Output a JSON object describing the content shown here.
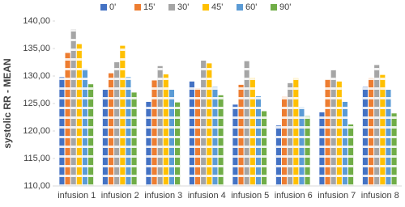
{
  "chart_data": {
    "type": "bar",
    "y_label": "systolic RR - MEAN",
    "categories": [
      "infusion 1",
      "infusion 2",
      "infusion 3",
      "infusion 4",
      "infusion 5",
      "infusion 6",
      "infusion 7",
      "infusion 8"
    ],
    "series": [
      {
        "name": "0'",
        "color": "#4472c4",
        "values": [
          129.8,
          127.5,
          125.3,
          129.0,
          124.8,
          121.0,
          123.4,
          128.0
        ]
      },
      {
        "name": "15'",
        "color": "#ed7d31",
        "values": [
          134.2,
          130.5,
          129.2,
          127.7,
          128.4,
          126.2,
          129.4,
          129.6
        ]
      },
      {
        "name": "30'",
        "color": "#a5a5a5",
        "values": [
          138.5,
          132.5,
          131.8,
          132.8,
          132.7,
          128.7,
          131.1,
          132.0
        ]
      },
      {
        "name": "45'",
        "color": "#ffc000",
        "values": [
          135.8,
          135.5,
          130.3,
          132.3,
          129.7,
          129.6,
          129.0,
          130.2
        ]
      },
      {
        "name": "60'",
        "color": "#5b9bd5",
        "values": [
          131.3,
          129.8,
          127.5,
          128.0,
          126.3,
          124.3,
          125.3,
          127.5
        ]
      },
      {
        "name": "90'",
        "color": "#70ad47",
        "values": [
          128.5,
          127.0,
          125.2,
          126.5,
          123.6,
          122.7,
          121.2,
          123.2
        ]
      }
    ],
    "ylim": [
      110,
      140
    ],
    "yticks": [
      {
        "value": 110,
        "label": "110,00"
      },
      {
        "value": 115,
        "label": "115,00"
      },
      {
        "value": 120,
        "label": "120,00"
      },
      {
        "value": 125,
        "label": "125,00"
      },
      {
        "value": 130,
        "label": "130,00"
      },
      {
        "value": 135,
        "label": "135,00"
      },
      {
        "value": 140,
        "label": "140,00"
      }
    ],
    "legend": "top"
  }
}
